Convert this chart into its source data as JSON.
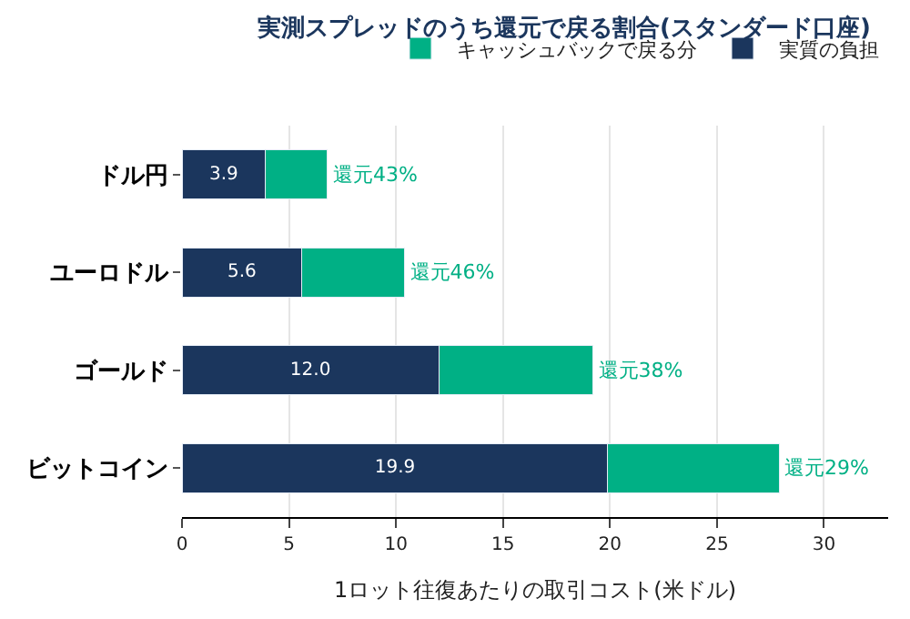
{
  "chart_data": {
    "type": "bar",
    "orientation": "horizontal",
    "stacked": true,
    "title": "実測スプレッドのうち還元で戻る割合(スタンダード口座)",
    "xlabel": "1ロット往復あたりの取引コスト(米ドル)",
    "categories": [
      "ドル円",
      "ユーロドル",
      "ゴールド",
      "ビットコイン"
    ],
    "series": [
      {
        "name": "実質の負担",
        "color": "#1b365d",
        "values": [
          3.9,
          5.6,
          12.0,
          19.9
        ],
        "value_labels": [
          "3.9",
          "5.6",
          "12.0",
          "19.9"
        ]
      },
      {
        "name": "キャッシュバックで戻る分",
        "color": "#00b085",
        "values": [
          2.9,
          4.8,
          7.2,
          8.0
        ],
        "value_labels": [
          "還元43%",
          "還元46%",
          "還元38%",
          "還元29%"
        ]
      }
    ],
    "xlim": [
      0,
      33
    ],
    "xticks": [
      0,
      5,
      10,
      15,
      20,
      25,
      30
    ],
    "grid": "x",
    "legend": "top right"
  }
}
